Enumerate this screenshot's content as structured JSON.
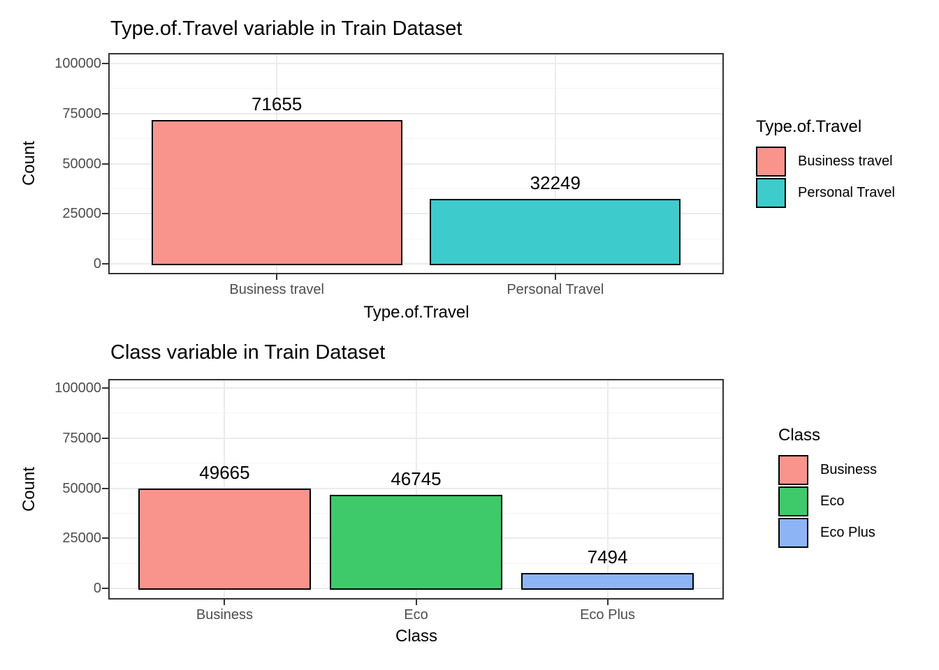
{
  "chart_data": [
    {
      "type": "bar",
      "title": "Type.of.Travel variable in Train Dataset",
      "xlabel": "Type.of.Travel",
      "ylabel": "Count",
      "categories": [
        "Business travel",
        "Personal Travel"
      ],
      "values": [
        71655,
        32249
      ],
      "bar_labels": [
        "71655",
        "32249"
      ],
      "bar_colors": [
        "#F8948C",
        "#3DCBCB"
      ],
      "y_ticks": [
        "0",
        "25000",
        "50000",
        "75000",
        "100000"
      ],
      "y_tick_values": [
        0,
        25000,
        50000,
        75000,
        100000
      ],
      "y_minor_values": [
        12500,
        37500,
        62500,
        87500
      ],
      "ylim": [
        0,
        100000
      ],
      "grid": true,
      "legend": {
        "title": "Type.of.Travel",
        "position": "right",
        "entries": [
          {
            "label": "Business travel",
            "color": "#F8948C"
          },
          {
            "label": "Personal Travel",
            "color": "#3DCBCB"
          }
        ]
      }
    },
    {
      "type": "bar",
      "title": "Class variable in Train Dataset",
      "xlabel": "Class",
      "ylabel": "Count",
      "categories": [
        "Business",
        "Eco",
        "Eco Plus"
      ],
      "values": [
        49665,
        46745,
        7494
      ],
      "bar_labels": [
        "49665",
        "46745",
        "7494"
      ],
      "bar_colors": [
        "#F8948C",
        "#3EC96B",
        "#8DB5F5"
      ],
      "y_ticks": [
        "0",
        "25000",
        "50000",
        "75000",
        "100000"
      ],
      "y_tick_values": [
        0,
        25000,
        50000,
        75000,
        100000
      ],
      "y_minor_values": [
        12500,
        37500,
        62500,
        87500
      ],
      "ylim": [
        0,
        100000
      ],
      "grid": true,
      "legend": {
        "title": "Class",
        "position": "right",
        "entries": [
          {
            "label": "Business",
            "color": "#F8948C"
          },
          {
            "label": "Eco",
            "color": "#3EC96B"
          },
          {
            "label": "Eco Plus",
            "color": "#8DB5F5"
          }
        ]
      }
    }
  ],
  "styles": {
    "background": "#FFFFFF",
    "panel_border": "#333333",
    "grid_major": "#EBEBEB",
    "grid_minor": "#F4F4F4",
    "axis_text": "#4D4D4D",
    "tick_mark": "#333333",
    "bar_outline": "#000000",
    "text": "#000000"
  }
}
